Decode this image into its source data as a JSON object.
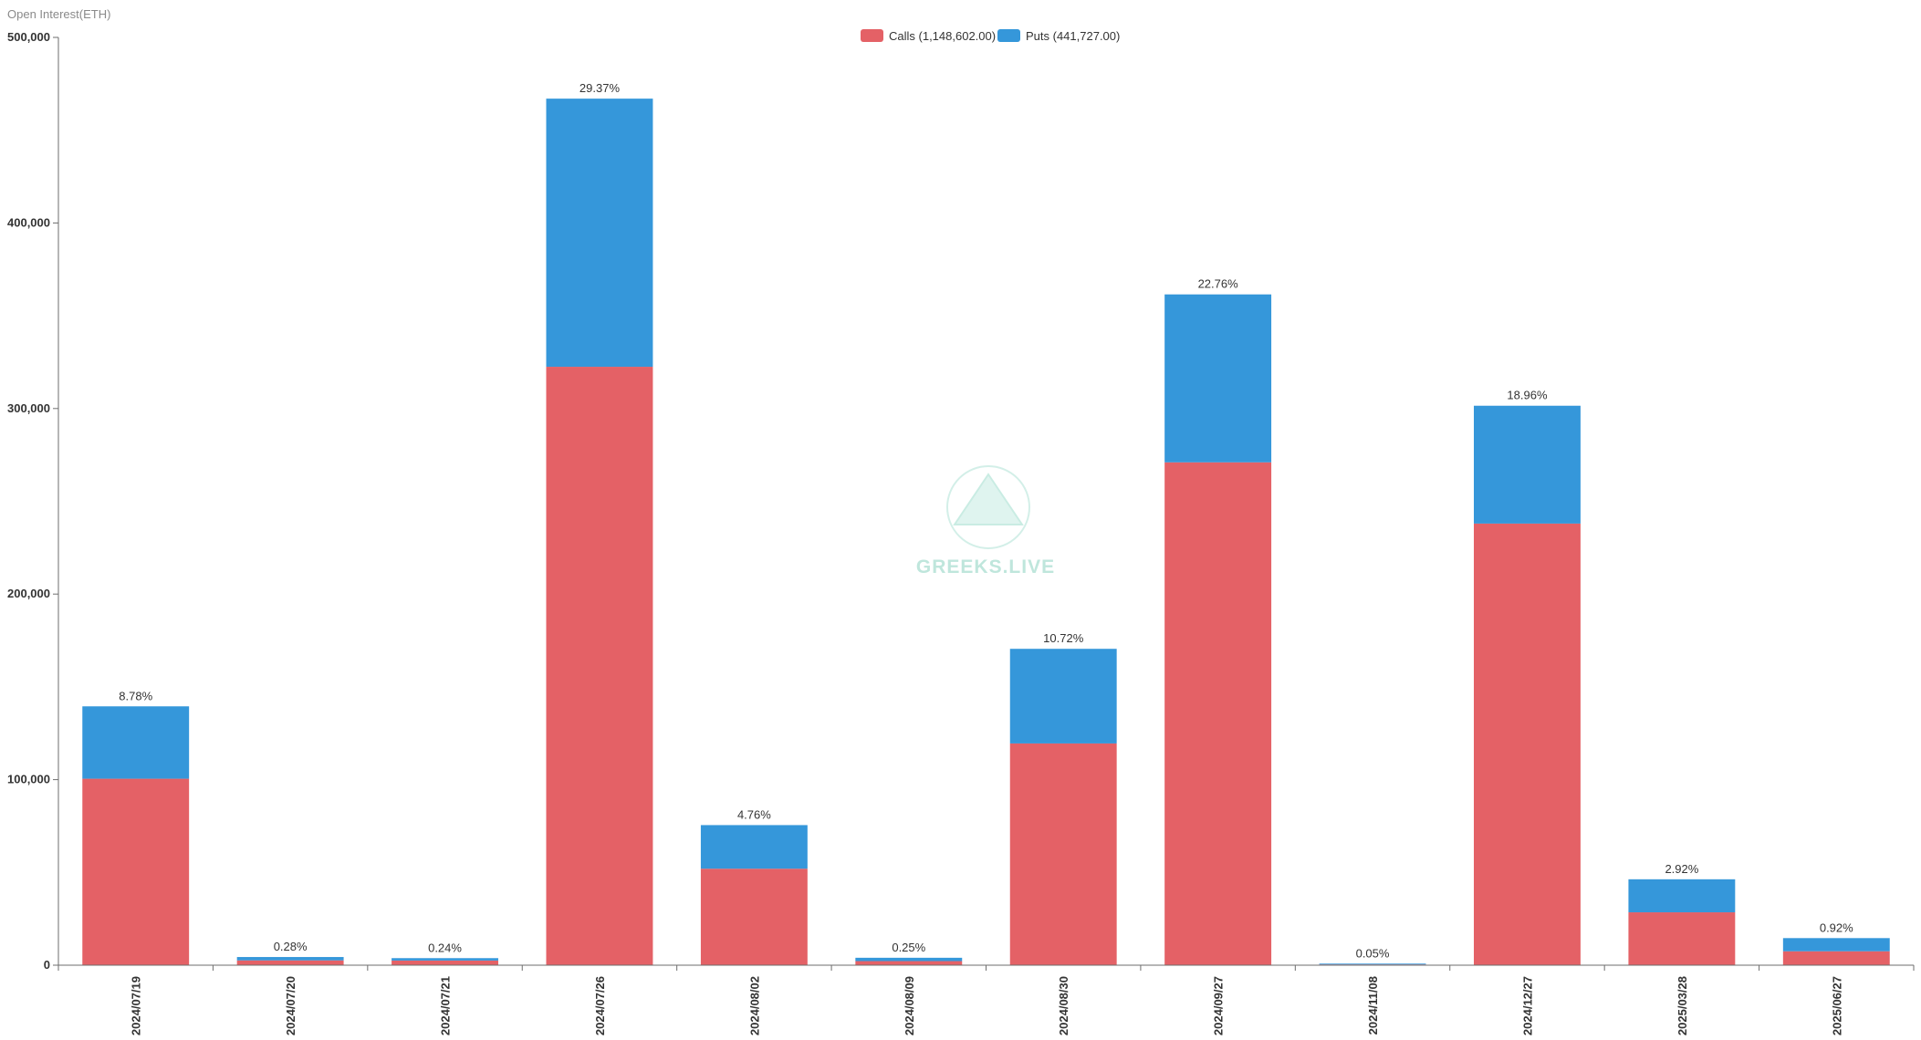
{
  "chart_data": {
    "type": "bar",
    "stacked": true,
    "title": "",
    "ylabel": "Open Interest(ETH)",
    "xlabel": "",
    "ylim": [
      0,
      500000
    ],
    "yticks": [
      0,
      100000,
      200000,
      300000,
      400000,
      500000
    ],
    "ytick_labels": [
      "0",
      "100,000",
      "200,000",
      "300,000",
      "400,000",
      "500,000"
    ],
    "grid": false,
    "legend_position": "top-center",
    "categories": [
      "2024/07/19",
      "2024/07/20",
      "2024/07/21",
      "2024/07/26",
      "2024/08/02",
      "2024/08/09",
      "2024/08/30",
      "2024/09/27",
      "2024/11/08",
      "2024/12/27",
      "2025/03/28",
      "2025/06/27"
    ],
    "series": [
      {
        "name": "Calls",
        "legend_label": "Calls (1,148,602.00)",
        "color": "#e46166",
        "values": [
          100500,
          2600,
          2500,
          322500,
          52000,
          2200,
          119500,
          271000,
          400,
          238000,
          28500,
          7500
        ]
      },
      {
        "name": "Puts",
        "legend_label": "Puts (441,727.00)",
        "color": "#3597da",
        "values": [
          39000,
          1800,
          1300,
          144500,
          23500,
          1800,
          51000,
          90500,
          450,
          63500,
          17800,
          7100
        ]
      }
    ],
    "data_labels": [
      "8.78%",
      "0.28%",
      "0.24%",
      "29.37%",
      "4.76%",
      "0.25%",
      "10.72%",
      "22.76%",
      "0.05%",
      "18.96%",
      "2.92%",
      "0.92%"
    ]
  },
  "watermark": {
    "text": "GREEKS.LIVE",
    "color": "#bfe6dc"
  },
  "colors": {
    "axis": "#6e6e6e",
    "text": "#333333"
  }
}
